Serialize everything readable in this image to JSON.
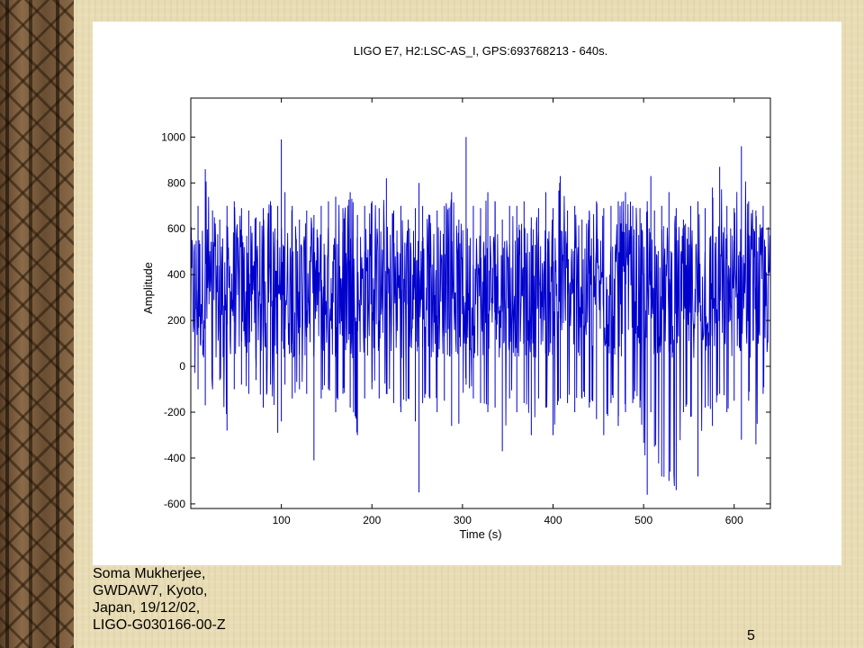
{
  "footer": {
    "lines": [
      "Soma Mukherjee,",
      "GWDAW7, Kyoto,",
      "Japan, 19/12/02,",
      "LIGO-G030166-00-Z"
    ],
    "page_number": "5"
  },
  "chart_data": {
    "type": "line",
    "title": "LIGO E7, H2:LSC-AS_I, GPS:693768213 - 640s.",
    "xlabel": "Time (s)",
    "ylabel": "Amplitude",
    "xlim": [
      0,
      640
    ],
    "ylim": [
      -620,
      1170
    ],
    "xticks": [
      100,
      200,
      300,
      400,
      500,
      600
    ],
    "yticks": [
      -600,
      -400,
      -200,
      0,
      200,
      400,
      600,
      800,
      1000
    ],
    "grid": false,
    "line_color": "#0000cc",
    "series": [
      {
        "x": [
          0,
          8,
          16,
          24,
          32,
          40,
          48,
          56,
          64,
          72,
          80,
          88,
          96,
          100,
          104,
          112,
          120,
          128,
          136,
          144,
          152,
          160,
          168,
          176,
          184,
          192,
          200,
          208,
          216,
          224,
          232,
          240,
          248,
          252,
          256,
          264,
          272,
          280,
          288,
          296,
          304,
          312,
          320,
          328,
          336,
          344,
          352,
          360,
          368,
          376,
          384,
          392,
          400,
          408,
          416,
          424,
          432,
          440,
          448,
          456,
          464,
          472,
          480,
          488,
          496,
          504,
          508,
          512,
          520,
          528,
          536,
          544,
          552,
          560,
          568,
          576,
          584,
          592,
          600,
          608,
          616,
          624,
          632,
          640
        ],
        "y_max": [
          620,
          700,
          860,
          680,
          640,
          700,
          720,
          690,
          680,
          650,
          690,
          720,
          700,
          990,
          760,
          700,
          640,
          680,
          660,
          700,
          720,
          740,
          690,
          760,
          660,
          700,
          720,
          690,
          820,
          680,
          700,
          640,
          690,
          800,
          700,
          660,
          680,
          700,
          760,
          640,
          1000,
          700,
          690,
          760,
          720,
          640,
          700,
          700,
          720,
          650,
          690,
          760,
          690,
          830,
          680,
          700,
          640,
          680,
          720,
          690,
          700,
          720,
          760,
          700,
          690,
          720,
          830,
          680,
          700,
          760,
          690,
          640,
          700,
          720,
          690,
          780,
          870,
          700,
          690,
          960,
          720,
          680,
          700,
          620
        ],
        "y_min": [
          0,
          -100,
          -170,
          -100,
          -60,
          -280,
          -100,
          -80,
          -120,
          -60,
          -180,
          -80,
          -290,
          -240,
          -80,
          -140,
          -100,
          -120,
          -410,
          -140,
          -100,
          -200,
          -120,
          -180,
          -300,
          -140,
          -100,
          -140,
          -120,
          -160,
          -200,
          -140,
          -240,
          -550,
          -160,
          -140,
          -200,
          -150,
          -260,
          -250,
          -80,
          -140,
          -160,
          -200,
          -180,
          -370,
          -140,
          -200,
          -160,
          -300,
          -140,
          -180,
          -300,
          -140,
          -160,
          -200,
          -140,
          -180,
          -230,
          -300,
          -160,
          -260,
          -200,
          -160,
          -180,
          -560,
          -200,
          -350,
          -480,
          -500,
          -540,
          -200,
          -220,
          -480,
          -180,
          -260,
          -120,
          -200,
          -150,
          -320,
          -150,
          -340,
          -120,
          -100
        ]
      }
    ]
  }
}
